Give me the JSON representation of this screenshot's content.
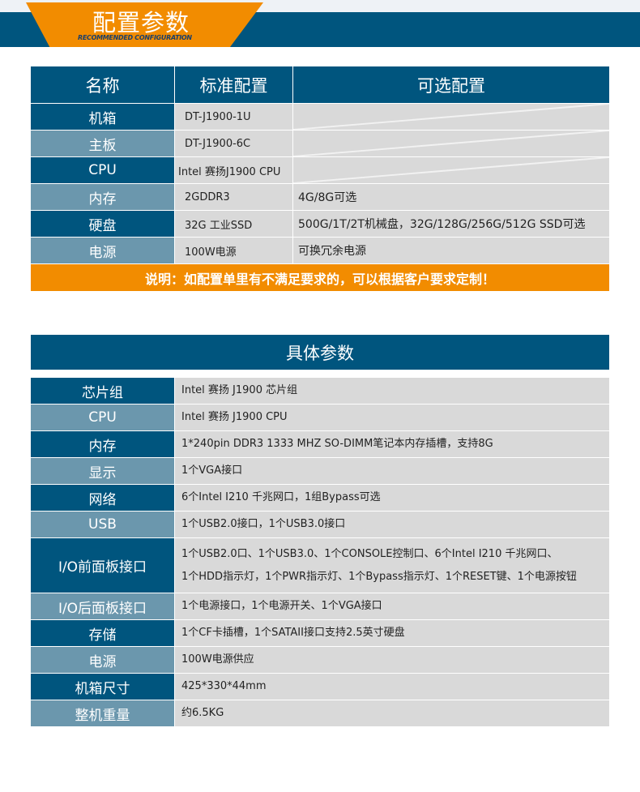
{
  "banner": {
    "title": "配置参数",
    "subtitle": "RECOMMENDED CONFIGURATION"
  },
  "config": {
    "headers": [
      "名称",
      "标准配置",
      "可选配置"
    ],
    "rows": [
      {
        "name": "机箱",
        "standard": "DT-J1900-1U",
        "optional": ""
      },
      {
        "name": "主板",
        "standard": "DT-J1900-6C",
        "optional": ""
      },
      {
        "name": "CPU",
        "standard": "Intel 赛扬J1900 CPU",
        "optional": ""
      },
      {
        "name": "内存",
        "standard": "2GDDR3",
        "optional": "4G/8G可选"
      },
      {
        "name": "硬盘",
        "standard": "32G 工业SSD",
        "optional": "500G/1T/2T机械盘，32G/128G/256G/512G SSD可选"
      },
      {
        "name": "电源",
        "standard": "100W电源",
        "optional": "可换冗余电源"
      }
    ],
    "note": "说明：如配置单里有不满足要求的，可以根据客户要求定制！"
  },
  "specs": {
    "title": "具体参数",
    "rows": [
      {
        "name": "芯片组",
        "value": [
          "Intel 赛扬 J1900 芯片组"
        ]
      },
      {
        "name": "CPU",
        "value": [
          "Intel 赛扬 J1900 CPU"
        ]
      },
      {
        "name": "内存",
        "value": [
          "1*240pin DDR3 1333 MHZ SO-DIMM笔记本内存插槽，支持8G"
        ]
      },
      {
        "name": "显示",
        "value": [
          "1个VGA接口"
        ]
      },
      {
        "name": "网络",
        "value": [
          "6个Intel I210 千兆网口，1组Bypass可选"
        ]
      },
      {
        "name": "USB",
        "value": [
          "1个USB2.0接口，1个USB3.0接口"
        ]
      },
      {
        "name": "I/O前面板接口",
        "value": [
          "1个USB2.0口、1个USB3.0、1个CONSOLE控制口、6个Intel I210 千兆网口、",
          "1个HDD指示灯，1个PWR指示灯、1个Bypass指示灯、1个RESET键、1个电源按钮"
        ]
      },
      {
        "name": "I/O后面板接口",
        "value": [
          "1个电源接口，1个电源开关、1个VGA接口"
        ]
      },
      {
        "name": "存储",
        "value": [
          "1个CF卡插槽，1个SATAII接口支持2.5英寸硬盘"
        ]
      },
      {
        "name": "电源",
        "value": [
          "100W电源供应"
        ]
      },
      {
        "name": "机箱尺寸",
        "value": [
          "425*330*44mm"
        ]
      },
      {
        "name": "整机重量",
        "value": [
          "约6.5KG"
        ]
      }
    ]
  },
  "colors": {
    "dark": "#00557e",
    "light": "#6b97ad",
    "orange": "#f28c00",
    "cell": "#d9d9d9"
  }
}
